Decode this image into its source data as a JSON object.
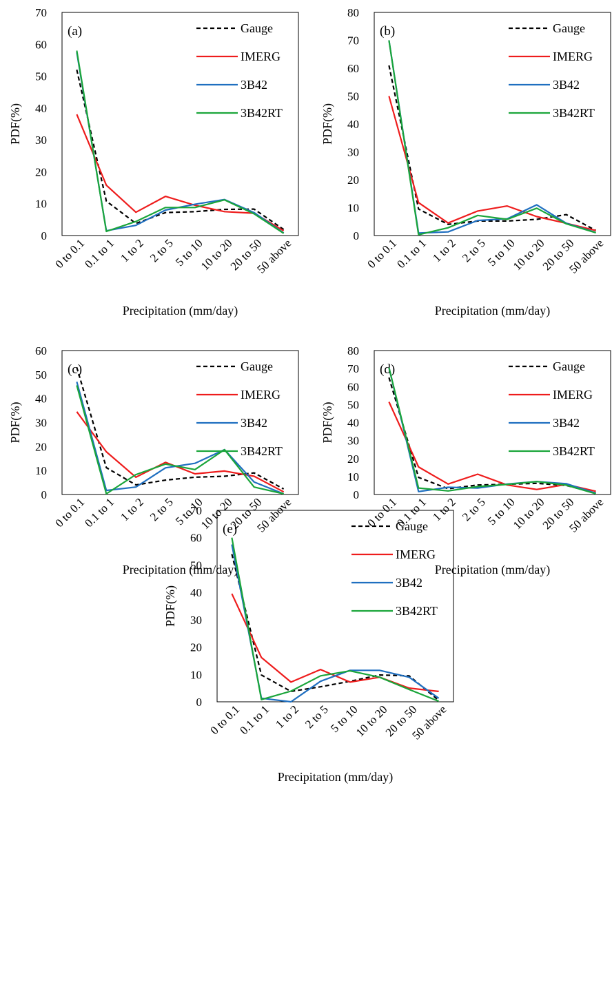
{
  "series_styles": [
    {
      "name": "Gauge",
      "color": "#000000",
      "dash": "6,4"
    },
    {
      "name": "IMERG",
      "color": "#ee1c1c",
      "dash": ""
    },
    {
      "name": "3B42",
      "color": "#1f6fc0",
      "dash": ""
    },
    {
      "name": "3B42RT",
      "color": "#1aa53a",
      "dash": ""
    }
  ],
  "chart_data": [
    {
      "type": "line",
      "panel_label": "(a)",
      "categories": [
        "0 to 0.1",
        "0.1 to 1",
        "1 to 2",
        "2 to 5",
        "5 to 10",
        "10 to 20",
        "20 to 50",
        "50 above"
      ],
      "xlabel": "Precipitation (mm/day)",
      "ylabel": "PDF(%)",
      "ylim": [
        0,
        70
      ],
      "yticks": [
        0,
        10,
        20,
        30,
        40,
        50,
        60,
        70
      ],
      "grid": false,
      "legend": "top-right",
      "series": [
        {
          "name": "Gauge",
          "values": [
            52,
            10.8,
            3.8,
            7.2,
            7.5,
            8.2,
            8.3,
            1.9
          ]
        },
        {
          "name": "IMERG",
          "values": [
            38,
            15.8,
            7.3,
            12.3,
            9.5,
            7.5,
            7.0,
            1.5
          ]
        },
        {
          "name": "3B42",
          "values": [
            57.5,
            1.5,
            3.2,
            8.0,
            9.8,
            11.3,
            7.2,
            0.8
          ]
        },
        {
          "name": "3B42RT",
          "values": [
            58,
            1.3,
            4.4,
            8.8,
            8.8,
            11.2,
            6.8,
            0.7
          ]
        }
      ]
    },
    {
      "type": "line",
      "panel_label": "(b)",
      "categories": [
        "0 to 0.1",
        "0.1 to 1",
        "1 to 2",
        "2 to 5",
        "5 to 10",
        "10 to 20",
        "20 to 50",
        "50 above"
      ],
      "xlabel": "Precipitation (mm/day)",
      "ylabel": "PDF(%)",
      "ylim": [
        0,
        80
      ],
      "yticks": [
        0,
        10,
        20,
        30,
        40,
        50,
        60,
        70,
        80
      ],
      "grid": false,
      "legend": "top-right",
      "series": [
        {
          "name": "Gauge",
          "values": [
            61,
            9.5,
            4.0,
            5.2,
            5.2,
            5.8,
            7.5,
            1.8
          ]
        },
        {
          "name": "IMERG",
          "values": [
            50,
            11.8,
            4.5,
            8.8,
            10.6,
            6.8,
            4.4,
            1.8
          ]
        },
        {
          "name": "3B42",
          "values": [
            70,
            0.9,
            1.3,
            5.4,
            6.0,
            11.0,
            4.4,
            1.1
          ]
        },
        {
          "name": "3B42RT",
          "values": [
            70,
            0.3,
            2.8,
            7.2,
            5.8,
            9.8,
            4.2,
            1.0
          ]
        }
      ]
    },
    {
      "type": "line",
      "panel_label": "(c)",
      "categories": [
        "0 to 0.1",
        "0.1 to 1",
        "1 to 2",
        "2 to 5",
        "5 to 10",
        "10 to 20",
        "20 to 50",
        "50 above"
      ],
      "xlabel": "Precipitation (mm/day)",
      "ylabel": "PDF(%)",
      "ylim": [
        0,
        60
      ],
      "yticks": [
        0,
        10,
        20,
        30,
        40,
        50,
        60
      ],
      "grid": false,
      "legend": "top-right",
      "series": [
        {
          "name": "Gauge",
          "values": [
            53,
            11.2,
            4.0,
            6.0,
            7.2,
            7.6,
            9.0,
            2.3
          ]
        },
        {
          "name": "IMERG",
          "values": [
            34.5,
            17.8,
            7.2,
            13.4,
            8.6,
            9.8,
            7.6,
            1.1
          ]
        },
        {
          "name": "3B42",
          "values": [
            47,
            1.7,
            3.1,
            11.1,
            13.0,
            18.7,
            5.2,
            0.3
          ]
        },
        {
          "name": "3B42RT",
          "values": [
            45.5,
            0.3,
            8.3,
            12.7,
            10.4,
            18.7,
            3.1,
            0.3
          ]
        }
      ]
    },
    {
      "type": "line",
      "panel_label": "(d)",
      "categories": [
        "0 to 0.1",
        "0.1 to 1",
        "1 to 2",
        "2 to 5",
        "5 to 10",
        "10 to 20",
        "20 to 50",
        "50 above"
      ],
      "xlabel": "Precipitation (mm/day)",
      "ylabel": "PDF(%)",
      "ylim": [
        0,
        80
      ],
      "yticks": [
        0,
        10,
        20,
        30,
        40,
        50,
        60,
        70,
        80
      ],
      "grid": false,
      "legend": "top-right",
      "series": [
        {
          "name": "Gauge",
          "values": [
            65,
            9.5,
            3.2,
            5.3,
            5.7,
            6.2,
            5.0,
            0.8
          ]
        },
        {
          "name": "IMERG",
          "values": [
            51.5,
            15.3,
            5.8,
            11.3,
            5.3,
            2.8,
            5.6,
            1.8
          ]
        },
        {
          "name": "3B42",
          "values": [
            70.5,
            1.6,
            4.0,
            3.6,
            5.8,
            7.2,
            6.0,
            0.7
          ]
        },
        {
          "name": "3B42RT",
          "values": [
            70.5,
            3.6,
            2.0,
            4.4,
            5.6,
            7.2,
            5.2,
            0.4
          ]
        }
      ]
    },
    {
      "type": "line",
      "panel_label": "(e)",
      "categories": [
        "0 to 0.1",
        "0.1 to 1",
        "1 to 2",
        "2 to 5",
        "5 to 10",
        "10 to 20",
        "20 to 50",
        "50 above"
      ],
      "xlabel": "Precipitation (mm/day)",
      "ylabel": "PDF(%)",
      "ylim": [
        0,
        70
      ],
      "yticks": [
        0,
        10,
        20,
        30,
        40,
        50,
        60,
        70
      ],
      "grid": false,
      "legend": "top-right",
      "series": [
        {
          "name": "Gauge",
          "values": [
            54,
            9.8,
            3.8,
            5.5,
            7.5,
            9.8,
            9.5,
            0.5
          ]
        },
        {
          "name": "IMERG",
          "values": [
            39.5,
            16.2,
            7.2,
            11.8,
            7.2,
            9.0,
            5.0,
            3.8
          ]
        },
        {
          "name": "3B42",
          "values": [
            57.5,
            1.3,
            0.0,
            7.5,
            11.5,
            11.5,
            9.0,
            1.3
          ]
        },
        {
          "name": "3B42RT",
          "values": [
            60,
            0.8,
            3.9,
            9.5,
            11.3,
            9.0,
            4.5,
            0.2
          ]
        }
      ]
    }
  ]
}
